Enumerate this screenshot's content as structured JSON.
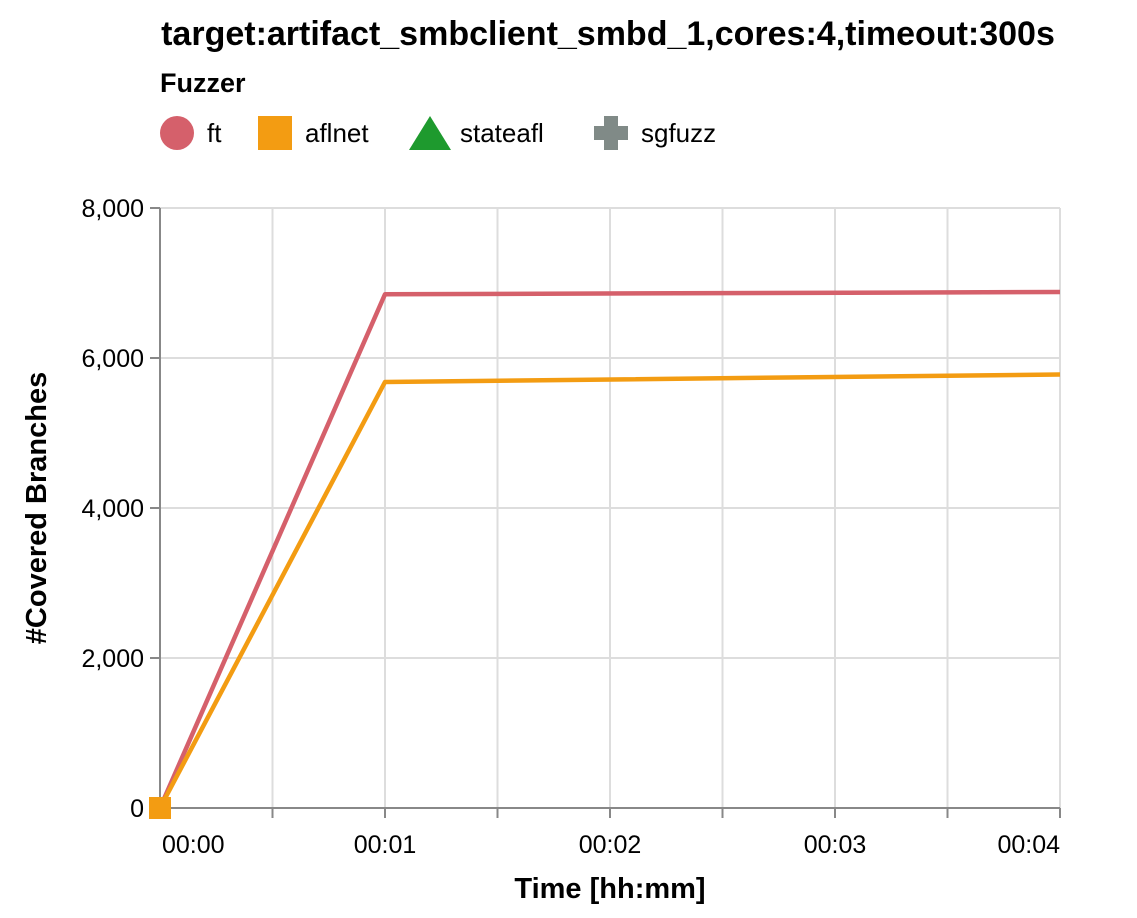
{
  "chart_data": {
    "type": "line",
    "title": "target:artifact_smbclient_smbd_1,cores:4,timeout:300s",
    "xlabel": "Time [hh:mm]",
    "ylabel": "#Covered Branches",
    "legend": {
      "title": "Fuzzer",
      "placement": "top-left",
      "entries": [
        {
          "name": "ft",
          "shape": "circle",
          "color": "#d5606b"
        },
        {
          "name": "aflnet",
          "shape": "square",
          "color": "#f39c12"
        },
        {
          "name": "stateafl",
          "shape": "triangle",
          "color": "#1e9a2e"
        },
        {
          "name": "sgfuzz",
          "shape": "cross",
          "color": "#808a87"
        }
      ]
    },
    "x_unit": "minutes",
    "xlim": [
      0,
      4
    ],
    "ylim": [
      0,
      8000
    ],
    "grid": true,
    "x_ticks": [
      {
        "value": 0,
        "label": "00:00"
      },
      {
        "value": 1,
        "label": "00:01"
      },
      {
        "value": 2,
        "label": "00:02"
      },
      {
        "value": 3,
        "label": "00:03"
      },
      {
        "value": 4,
        "label": "00:04"
      }
    ],
    "x_minor_ticks": [
      0.5,
      1.5,
      2.5,
      3.5
    ],
    "y_ticks": [
      {
        "value": 0,
        "label": "0"
      },
      {
        "value": 2000,
        "label": "2,000"
      },
      {
        "value": 4000,
        "label": "4,000"
      },
      {
        "value": 6000,
        "label": "6,000"
      },
      {
        "value": 8000,
        "label": "8,000"
      }
    ],
    "series": [
      {
        "name": "ft",
        "color": "#d5606b",
        "x": [
          0,
          1,
          4
        ],
        "y": [
          0,
          6850,
          6880
        ]
      },
      {
        "name": "aflnet",
        "color": "#f39c12",
        "x": [
          0,
          1,
          4
        ],
        "y": [
          0,
          5680,
          5780
        ],
        "start_marker": "square"
      }
    ]
  }
}
